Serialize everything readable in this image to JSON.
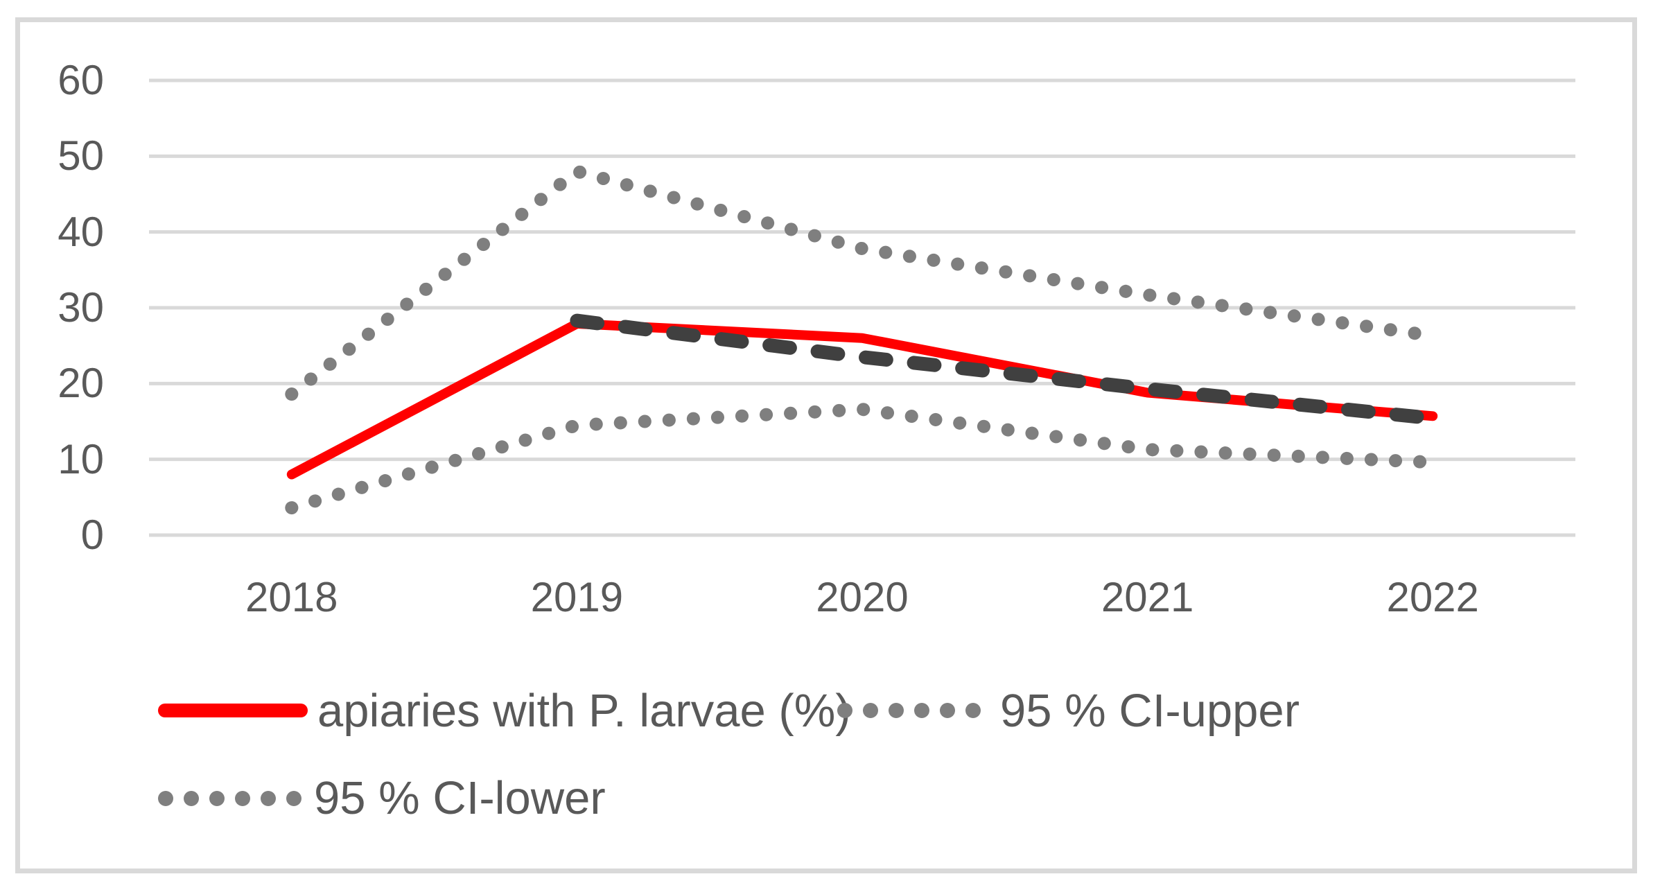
{
  "chart_data": {
    "type": "line",
    "x": [
      "2018",
      "2019",
      "2020",
      "2021",
      "2022"
    ],
    "series": [
      {
        "name": "apiaries with P. larvae (%)",
        "values": [
          8,
          27.9,
          26,
          18.8,
          15.7
        ],
        "style": "solid",
        "color": "#FF0000",
        "in_legend": true
      },
      {
        "name": "95 % CI-upper",
        "values": [
          18.6,
          48,
          37.8,
          31.7,
          26.3
        ],
        "style": "dotted",
        "color": "#7F7F7F",
        "in_legend": true
      },
      {
        "name": "95 % CI-lower",
        "values": [
          3.6,
          14.5,
          16.6,
          11.3,
          9.6
        ],
        "style": "dotted",
        "color": "#7F7F7F",
        "in_legend": true
      },
      {
        "name": "trendline",
        "values": [
          null,
          28.3,
          23.5,
          19.3,
          15.4
        ],
        "style": "dashed",
        "color": "#404040",
        "in_legend": false
      }
    ],
    "title": "",
    "xlabel": "",
    "ylabel": "",
    "ylim": [
      0,
      60
    ],
    "yticks": [
      0,
      10,
      20,
      30,
      40,
      50,
      60
    ],
    "grid": true,
    "legend_position": "bottom"
  },
  "legend": {
    "apiaries": "apiaries with P. larvae (%)",
    "ci_upper": "95 % CI-upper",
    "ci_lower": "95 % CI-lower"
  },
  "colors": {
    "line_red": "#FF0000",
    "ci_gray": "#7F7F7F",
    "trend_dark": "#404040",
    "gridline": "#D9D9D9",
    "frame_border": "#D9D9D9",
    "label_text": "#595959",
    "background": "#FFFFFF"
  }
}
